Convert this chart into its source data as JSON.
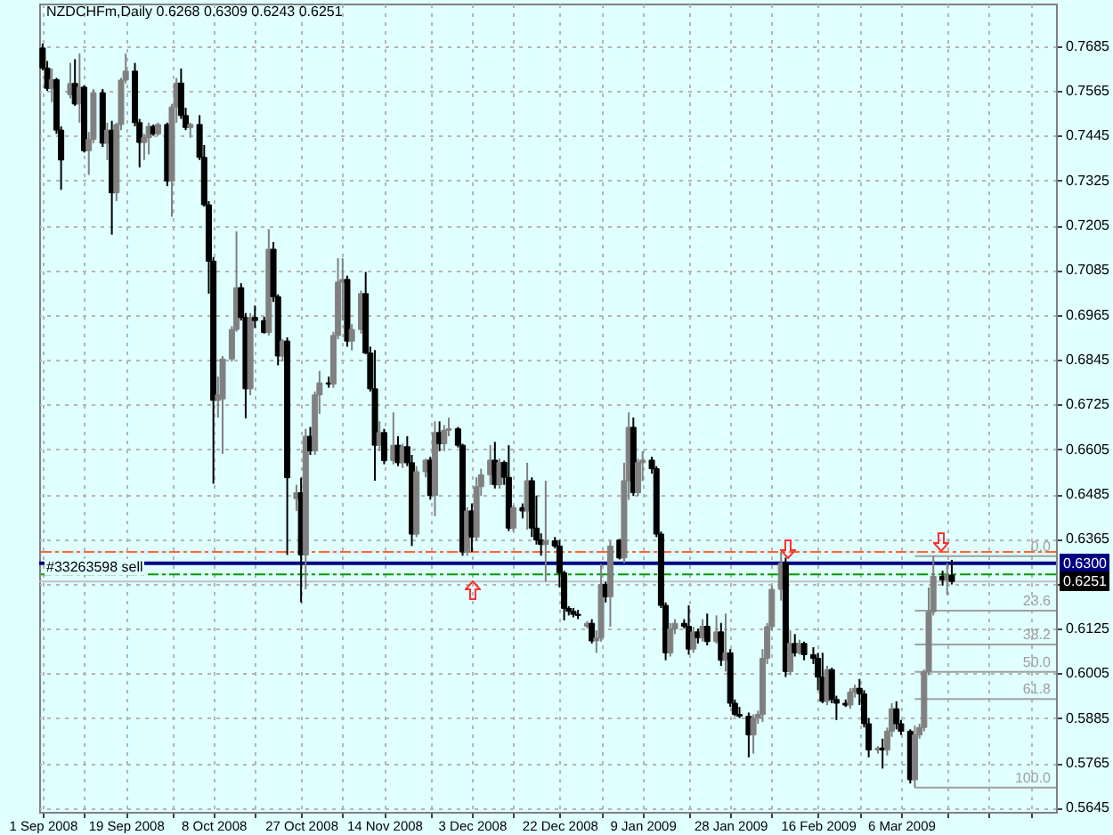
{
  "chart_data": {
    "type": "candlestick",
    "title": "NZDCHFm,Daily 0.6268 0.6309 0.6243 0.6251",
    "x": [
      "2008-09-01",
      "2008-09-02",
      "2008-09-03",
      "2008-09-04",
      "2008-09-05",
      "2008-09-07",
      "2008-09-08",
      "2008-09-09",
      "2008-09-10",
      "2008-09-11",
      "2008-09-12",
      "2008-09-14",
      "2008-09-15",
      "2008-09-16",
      "2008-09-17",
      "2008-09-18",
      "2008-09-19",
      "2008-09-21",
      "2008-09-22",
      "2008-09-23",
      "2008-09-24",
      "2008-09-25",
      "2008-09-26",
      "2008-09-28",
      "2008-09-29",
      "2008-09-30",
      "2008-10-01",
      "2008-10-02",
      "2008-10-03",
      "2008-10-05",
      "2008-10-06",
      "2008-10-07",
      "2008-10-08",
      "2008-10-09",
      "2008-10-10",
      "2008-10-12",
      "2008-10-13",
      "2008-10-14",
      "2008-10-15",
      "2008-10-16",
      "2008-10-17",
      "2008-10-19",
      "2008-10-20",
      "2008-10-21",
      "2008-10-22",
      "2008-10-23",
      "2008-10-24",
      "2008-10-26",
      "2008-10-27",
      "2008-10-28",
      "2008-10-29",
      "2008-10-30",
      "2008-10-31",
      "2008-11-02",
      "2008-11-03",
      "2008-11-04",
      "2008-11-05",
      "2008-11-06",
      "2008-11-07",
      "2008-11-09",
      "2008-11-10",
      "2008-11-11",
      "2008-11-12",
      "2008-11-13",
      "2008-11-14",
      "2008-11-16",
      "2008-11-17",
      "2008-11-18",
      "2008-11-19",
      "2008-11-20",
      "2008-11-21",
      "2008-11-23",
      "2008-11-24",
      "2008-11-25",
      "2008-11-26",
      "2008-11-27",
      "2008-11-28",
      "2008-11-30",
      "2008-12-01",
      "2008-12-02",
      "2008-12-03",
      "2008-12-04",
      "2008-12-05",
      "2008-12-07",
      "2008-12-08",
      "2008-12-09",
      "2008-12-10",
      "2008-12-11",
      "2008-12-12",
      "2008-12-14",
      "2008-12-15",
      "2008-12-16",
      "2008-12-17",
      "2008-12-18",
      "2008-12-19",
      "2008-12-21",
      "2008-12-22",
      "2008-12-23",
      "2008-12-24",
      "2008-12-25",
      "2008-12-26",
      "2008-12-28",
      "2008-12-29",
      "2008-12-30",
      "2008-12-31",
      "2009-01-01",
      "2009-01-02",
      "2009-01-04",
      "2009-01-05",
      "2009-01-06",
      "2009-01-07",
      "2009-01-08",
      "2009-01-09",
      "2009-01-11",
      "2009-01-12",
      "2009-01-13",
      "2009-01-14",
      "2009-01-15",
      "2009-01-16",
      "2009-01-18",
      "2009-01-19",
      "2009-01-20",
      "2009-01-21",
      "2009-01-22",
      "2009-01-23",
      "2009-01-25",
      "2009-01-26",
      "2009-01-27",
      "2009-01-28",
      "2009-01-29",
      "2009-01-30",
      "2009-02-01",
      "2009-02-02",
      "2009-02-03",
      "2009-02-04",
      "2009-02-05",
      "2009-02-06",
      "2009-02-08",
      "2009-02-09",
      "2009-02-10",
      "2009-02-11",
      "2009-02-12",
      "2009-02-13",
      "2009-02-15",
      "2009-02-16",
      "2009-02-17",
      "2009-02-18",
      "2009-02-19",
      "2009-02-20",
      "2009-02-22",
      "2009-02-23",
      "2009-02-24",
      "2009-02-25",
      "2009-02-26",
      "2009-02-27",
      "2009-03-01",
      "2009-03-02",
      "2009-03-03",
      "2009-03-04",
      "2009-03-05",
      "2009-03-06",
      "2009-03-08",
      "2009-03-09",
      "2009-03-10",
      "2009-03-11",
      "2009-03-12",
      "2009-03-13",
      "2009-03-15",
      "2009-03-16",
      "2009-03-17"
    ],
    "ohlc": [
      [
        0.768,
        0.7692,
        0.762,
        0.7626
      ],
      [
        0.7626,
        0.7645,
        0.7565,
        0.7572
      ],
      [
        0.7572,
        0.7625,
        0.7535,
        0.7595
      ],
      [
        0.7595,
        0.76,
        0.745,
        0.746
      ],
      [
        0.746,
        0.747,
        0.73,
        0.738
      ],
      [
        0.7555,
        0.764,
        0.7545,
        0.7585
      ],
      [
        0.7585,
        0.765,
        0.7525,
        0.753
      ],
      [
        0.753,
        0.7665,
        0.748,
        0.7575
      ],
      [
        0.7575,
        0.758,
        0.74,
        0.7405
      ],
      [
        0.7405,
        0.7455,
        0.734,
        0.7435
      ],
      [
        0.7435,
        0.757,
        0.7425,
        0.756
      ],
      [
        0.756,
        0.757,
        0.7415,
        0.7425
      ],
      [
        0.7425,
        0.748,
        0.738,
        0.746
      ],
      [
        0.746,
        0.7485,
        0.718,
        0.7292
      ],
      [
        0.7292,
        0.748,
        0.727,
        0.7475
      ],
      [
        0.7475,
        0.76,
        0.746,
        0.7594
      ],
      [
        0.7594,
        0.7665,
        0.7585,
        0.7618
      ],
      [
        0.7618,
        0.764,
        0.747,
        0.748
      ],
      [
        0.748,
        0.749,
        0.736,
        0.7427
      ],
      [
        0.7427,
        0.745,
        0.738,
        0.744
      ],
      [
        0.744,
        0.748,
        0.7395,
        0.747
      ],
      [
        0.747,
        0.7475,
        0.7445,
        0.745
      ],
      [
        0.745,
        0.748,
        0.7445,
        0.7475
      ],
      [
        0.7475,
        0.748,
        0.731,
        0.7324
      ],
      [
        0.7324,
        0.753,
        0.7228,
        0.7522
      ],
      [
        0.7522,
        0.76,
        0.748,
        0.7586
      ],
      [
        0.7586,
        0.7625,
        0.749,
        0.7499
      ],
      [
        0.7499,
        0.752,
        0.746,
        0.7467
      ],
      [
        0.7467,
        0.748,
        0.744,
        0.7475
      ],
      [
        0.7475,
        0.75,
        0.738,
        0.7387
      ],
      [
        0.7387,
        0.742,
        0.7255,
        0.726
      ],
      [
        0.726,
        0.727,
        0.7022,
        0.7109
      ],
      [
        0.7109,
        0.712,
        0.6513,
        0.6736
      ],
      [
        0.6736,
        0.68,
        0.669,
        0.6751
      ],
      [
        0.674,
        0.6855,
        0.6593,
        0.6847
      ],
      [
        0.6847,
        0.6935,
        0.684,
        0.6926
      ],
      [
        0.6926,
        0.7189,
        0.692,
        0.7038
      ],
      [
        0.7038,
        0.705,
        0.695,
        0.6958
      ],
      [
        0.6958,
        0.697,
        0.6688,
        0.6767
      ],
      [
        0.6767,
        0.697,
        0.675,
        0.6958
      ],
      [
        0.6958,
        0.699,
        0.693,
        0.695
      ],
      [
        0.695,
        0.696,
        0.6915,
        0.6918
      ],
      [
        0.6918,
        0.7195,
        0.691,
        0.7141
      ],
      [
        0.7141,
        0.716,
        0.7,
        0.7014
      ],
      [
        0.7014,
        0.702,
        0.683,
        0.6855
      ],
      [
        0.6855,
        0.69,
        0.684,
        0.6895
      ],
      [
        0.6895,
        0.6905,
        0.6322,
        0.6529
      ],
      [
        0.6473,
        0.651,
        0.644,
        0.6489
      ],
      [
        0.6489,
        0.6529,
        0.6195,
        0.6322
      ],
      [
        0.6322,
        0.666,
        0.623,
        0.664
      ],
      [
        0.664,
        0.6665,
        0.659,
        0.6601
      ],
      [
        0.6601,
        0.676,
        0.659,
        0.6751
      ],
      [
        0.6751,
        0.6815,
        0.67,
        0.6783
      ],
      [
        0.6783,
        0.68,
        0.677,
        0.678
      ],
      [
        0.678,
        0.692,
        0.677,
        0.691
      ],
      [
        0.691,
        0.7117,
        0.69,
        0.7053
      ],
      [
        0.7053,
        0.7117,
        0.695,
        0.706
      ],
      [
        0.706,
        0.707,
        0.688,
        0.6895
      ],
      [
        0.6895,
        0.694,
        0.687,
        0.6926
      ],
      [
        0.6926,
        0.703,
        0.6915,
        0.7022
      ],
      [
        0.7022,
        0.708,
        0.686,
        0.6863
      ],
      [
        0.6863,
        0.688,
        0.676,
        0.6767
      ],
      [
        0.6767,
        0.6871,
        0.6521,
        0.6616
      ],
      [
        0.6616,
        0.668,
        0.66,
        0.665
      ],
      [
        0.665,
        0.666,
        0.6565,
        0.6575
      ],
      [
        0.6575,
        0.6704,
        0.6565,
        0.6616
      ],
      [
        0.6616,
        0.664,
        0.656,
        0.6569
      ],
      [
        0.6569,
        0.662,
        0.6555,
        0.6612
      ],
      [
        0.6612,
        0.664,
        0.656,
        0.6569
      ],
      [
        0.6569,
        0.659,
        0.6346,
        0.6378
      ],
      [
        0.6378,
        0.656,
        0.637,
        0.6545
      ],
      [
        0.6545,
        0.658,
        0.653,
        0.6576
      ],
      [
        0.6576,
        0.6585,
        0.647,
        0.6481
      ],
      [
        0.6481,
        0.668,
        0.6426,
        0.665
      ],
      [
        0.665,
        0.668,
        0.66,
        0.662
      ],
      [
        0.662,
        0.667,
        0.66,
        0.6656
      ],
      [
        0.6656,
        0.669,
        0.664,
        0.666
      ],
      [
        0.666,
        0.6665,
        0.661,
        0.6616
      ],
      [
        0.6616,
        0.662,
        0.632,
        0.633
      ],
      [
        0.633,
        0.645,
        0.632,
        0.644
      ],
      [
        0.644,
        0.646,
        0.633,
        0.637
      ],
      [
        0.637,
        0.653,
        0.636,
        0.6505
      ],
      [
        0.6505,
        0.6553,
        0.648,
        0.6537
      ],
      [
        0.6537,
        0.6616,
        0.651,
        0.6576
      ],
      [
        0.6576,
        0.6625,
        0.65,
        0.651
      ],
      [
        0.651,
        0.658,
        0.65,
        0.657
      ],
      [
        0.657,
        0.6575,
        0.651,
        0.653
      ],
      [
        0.653,
        0.6616,
        0.6386,
        0.6394
      ],
      [
        0.6394,
        0.6455,
        0.6385,
        0.6449
      ],
      [
        0.6449,
        0.646,
        0.642,
        0.644
      ],
      [
        0.644,
        0.6569,
        0.639,
        0.6521
      ],
      [
        0.6521,
        0.653,
        0.637,
        0.6394
      ],
      [
        0.6394,
        0.6481,
        0.635,
        0.6362
      ],
      [
        0.6362,
        0.638,
        0.632,
        0.635
      ],
      [
        0.635,
        0.6521,
        0.6251,
        0.636
      ],
      [
        0.636,
        0.637,
        0.634,
        0.6346
      ],
      [
        0.6346,
        0.6362,
        0.6235,
        0.6274
      ],
      [
        0.6274,
        0.628,
        0.6147,
        0.6179
      ],
      [
        0.6179,
        0.6185,
        0.616,
        0.6171
      ],
      [
        0.6171,
        0.618,
        0.6155,
        0.6163
      ],
      [
        0.6163,
        0.6175,
        0.615,
        0.616
      ],
      [
        0.6131,
        0.6145,
        0.6125,
        0.6139
      ],
      [
        0.6139,
        0.615,
        0.6085,
        0.6092
      ],
      [
        0.6092,
        0.612,
        0.606,
        0.61
      ],
      [
        0.61,
        0.6298,
        0.609,
        0.6243
      ],
      [
        0.6243,
        0.625,
        0.6195,
        0.621
      ],
      [
        0.621,
        0.636,
        0.613,
        0.6346
      ],
      [
        0.6362,
        0.6365,
        0.631,
        0.6314
      ],
      [
        0.6314,
        0.6569,
        0.63,
        0.6521
      ],
      [
        0.6521,
        0.6704,
        0.647,
        0.6664
      ],
      [
        0.6664,
        0.669,
        0.648,
        0.6489
      ],
      [
        0.6489,
        0.658,
        0.648,
        0.6569
      ],
      [
        0.6569,
        0.66,
        0.652,
        0.6576
      ],
      [
        0.6576,
        0.6585,
        0.654,
        0.6553
      ],
      [
        0.6553,
        0.656,
        0.637,
        0.6378
      ],
      [
        0.6378,
        0.6385,
        0.618,
        0.6187
      ],
      [
        0.6187,
        0.6195,
        0.604,
        0.606
      ],
      [
        0.606,
        0.614,
        0.605,
        0.6124
      ],
      [
        0.6124,
        0.615,
        0.611,
        0.6139
      ],
      [
        0.6139,
        0.615,
        0.6125,
        0.6131
      ],
      [
        0.6131,
        0.6187,
        0.6055,
        0.607
      ],
      [
        0.607,
        0.613,
        0.606,
        0.6116
      ],
      [
        0.6116,
        0.6125,
        0.6085,
        0.61
      ],
      [
        0.61,
        0.615,
        0.609,
        0.6131
      ],
      [
        0.6131,
        0.6165,
        0.608,
        0.609
      ],
      [
        0.609,
        0.616,
        0.6085,
        0.6116
      ],
      [
        0.6116,
        0.614,
        0.6025,
        0.604
      ],
      [
        0.604,
        0.6165,
        0.601,
        0.606
      ],
      [
        0.606,
        0.607,
        0.5915,
        0.5925
      ],
      [
        0.5925,
        0.5935,
        0.589,
        0.5895
      ],
      [
        0.5895,
        0.5915,
        0.5885,
        0.589
      ],
      [
        0.589,
        0.59,
        0.578,
        0.584
      ],
      [
        0.584,
        0.5895,
        0.579,
        0.5885
      ],
      [
        0.5885,
        0.5905,
        0.587,
        0.5895
      ],
      [
        0.5895,
        0.607,
        0.5875,
        0.6045
      ],
      [
        0.6045,
        0.614,
        0.603,
        0.613
      ],
      [
        0.613,
        0.624,
        0.612,
        0.623
      ],
      [
        0.623,
        0.633,
        0.62,
        0.63
      ],
      [
        0.63,
        0.6315,
        0.5995,
        0.601
      ],
      [
        0.601,
        0.612,
        0.6,
        0.6085
      ],
      [
        0.6085,
        0.611,
        0.605,
        0.606
      ],
      [
        0.606,
        0.6095,
        0.6055,
        0.6085
      ],
      [
        0.6085,
        0.609,
        0.604,
        0.6055
      ],
      [
        0.6055,
        0.6075,
        0.603,
        0.6045
      ],
      [
        0.6045,
        0.606,
        0.596,
        0.5995
      ],
      [
        0.5995,
        0.606,
        0.5925,
        0.593
      ],
      [
        0.593,
        0.6025,
        0.592,
        0.6015
      ],
      [
        0.6015,
        0.602,
        0.5925,
        0.5935
      ],
      [
        0.5935,
        0.5945,
        0.588,
        0.5925
      ],
      [
        0.5925,
        0.5935,
        0.5915,
        0.592
      ],
      [
        0.592,
        0.5965,
        0.591,
        0.5955
      ],
      [
        0.5955,
        0.5975,
        0.594,
        0.5965
      ],
      [
        0.5965,
        0.599,
        0.592,
        0.595
      ],
      [
        0.595,
        0.596,
        0.586,
        0.587
      ],
      [
        0.587,
        0.5885,
        0.578,
        0.58
      ],
      [
        0.58,
        0.581,
        0.579,
        0.5805
      ],
      [
        0.5805,
        0.583,
        0.575,
        0.58
      ],
      [
        0.58,
        0.586,
        0.5785,
        0.585
      ],
      [
        0.585,
        0.5925,
        0.5835,
        0.591
      ],
      [
        0.591,
        0.593,
        0.5855,
        0.587
      ],
      [
        0.587,
        0.588,
        0.584,
        0.585
      ],
      [
        0.585,
        0.5855,
        0.571,
        0.572
      ],
      [
        0.572,
        0.5865,
        0.5699,
        0.584
      ],
      [
        0.584,
        0.587,
        0.583,
        0.586
      ],
      [
        0.586,
        0.6015,
        0.585,
        0.601
      ],
      [
        0.601,
        0.6235,
        0.6,
        0.617
      ],
      [
        0.617,
        0.6319,
        0.616,
        0.6265
      ],
      [
        0.6265,
        0.628,
        0.624,
        0.6255
      ],
      [
        0.6255,
        0.63,
        0.6215,
        0.6268
      ],
      [
        0.6268,
        0.6309,
        0.6243,
        0.6251
      ]
    ],
    "colors": [
      "#000000",
      "#000000",
      "#808080",
      "#000000",
      "#000000",
      "#808080",
      "#000000",
      "#808080",
      "#000000",
      "#808080",
      "#808080",
      "#000000",
      "#808080",
      "#000000",
      "#808080",
      "#808080",
      "#808080",
      "#000000",
      "#000000",
      "#808080",
      "#808080",
      "#000000",
      "#808080",
      "#000000",
      "#808080",
      "#808080",
      "#000000",
      "#000000",
      "#808080",
      "#000000",
      "#000000",
      "#000000",
      "#000000",
      "#808080",
      "#808080",
      "#808080",
      "#808080",
      "#000000",
      "#000000",
      "#808080",
      "#000000",
      "#000000",
      "#808080",
      "#000000",
      "#000000",
      "#808080",
      "#000000",
      "#808080",
      "#000000",
      "#808080",
      "#000000",
      "#808080",
      "#808080",
      "#000000",
      "#808080",
      "#808080",
      "#808080",
      "#000000",
      "#808080",
      "#808080",
      "#000000",
      "#000000",
      "#000000",
      "#808080",
      "#000000",
      "#808080",
      "#000000",
      "#808080",
      "#000000",
      "#000000",
      "#808080",
      "#808080",
      "#000000",
      "#808080",
      "#000000",
      "#808080",
      "#808080",
      "#000000",
      "#000000",
      "#808080",
      "#000000",
      "#808080",
      "#808080",
      "#808080",
      "#000000",
      "#808080",
      "#000000",
      "#000000",
      "#808080",
      "#000000",
      "#808080",
      "#000000",
      "#000000",
      "#000000",
      "#808080",
      "#000000",
      "#000000",
      "#000000",
      "#000000",
      "#000000",
      "#000000",
      "#808080",
      "#000000",
      "#808080",
      "#808080",
      "#000000",
      "#808080",
      "#000000",
      "#808080",
      "#808080",
      "#000000",
      "#808080",
      "#808080",
      "#000000",
      "#000000",
      "#000000",
      "#000000",
      "#808080",
      "#808080",
      "#000000",
      "#000000",
      "#808080",
      "#000000",
      "#808080",
      "#000000",
      "#808080",
      "#000000",
      "#808080",
      "#000000",
      "#000000",
      "#000000",
      "#000000",
      "#808080",
      "#808080",
      "#808080",
      "#808080",
      "#808080",
      "#808080",
      "#000000",
      "#808080",
      "#000000",
      "#808080",
      "#000000",
      "#000000",
      "#000000",
      "#000000",
      "#808080",
      "#000000",
      "#000000",
      "#000000",
      "#808080",
      "#808080",
      "#000000",
      "#000000",
      "#000000",
      "#808080",
      "#000000",
      "#808080",
      "#808080",
      "#000000",
      "#000000",
      "#000000",
      "#808080",
      "#808080",
      "#808080",
      "#808080",
      "#808080",
      "#000000",
      "#808080",
      "#000000"
    ],
    "series": [
      {
        "type": "line",
        "name": "0.0",
        "x": [
          "2009-03-09",
          "2009-04-08T14:00"
        ],
        "values": [
          0.6319,
          0.6319
        ],
        "color": "#a0a0a0"
      },
      {
        "type": "line",
        "name": "23.6",
        "x": [
          "2009-03-09",
          "2009-04-08T14:00"
        ],
        "values": [
          0.6173,
          0.6173
        ],
        "color": "#a0a0a0"
      },
      {
        "type": "line",
        "name": "38.2",
        "x": [
          "2009-03-09",
          "2009-04-08T14:00"
        ],
        "values": [
          0.6082,
          0.6082
        ],
        "color": "#a0a0a0"
      },
      {
        "type": "line",
        "name": "50.0",
        "x": [
          "2009-03-09",
          "2009-04-08T14:00"
        ],
        "values": [
          0.6009,
          0.6009
        ],
        "color": "#a0a0a0"
      },
      {
        "type": "line",
        "name": "61.8",
        "x": [
          "2009-03-09",
          "2009-04-08T14:00"
        ],
        "values": [
          0.5936,
          0.5936
        ],
        "color": "#a0a0a0"
      },
      {
        "type": "line",
        "name": "100.0",
        "x": [
          "2009-03-09",
          "2009-04-08T14:00"
        ],
        "values": [
          0.5699,
          0.5699
        ],
        "color": "#a0a0a0"
      }
    ],
    "xlim": [
      "2008-08-31T06:00",
      "2009-04-08T14:00"
    ],
    "xticks": [
      {
        "value": "2008-09-01",
        "label": "1 Sep 2008"
      },
      {
        "value": "2008-09-10",
        "label": null
      },
      {
        "value": "2008-09-19",
        "label": "19 Sep 2008"
      },
      {
        "value": "2008-09-29",
        "label": null
      },
      {
        "value": "2008-10-08",
        "label": "8 Oct 2008"
      },
      {
        "value": "2008-10-17",
        "label": null
      },
      {
        "value": "2008-10-27",
        "label": "27 Oct 2008"
      },
      {
        "value": "2008-11-05",
        "label": null
      },
      {
        "value": "2008-11-14",
        "label": "14 Nov 2008"
      },
      {
        "value": "2008-11-24",
        "label": null
      },
      {
        "value": "2008-12-03",
        "label": "3 Dec 2008"
      },
      {
        "value": "2008-12-12",
        "label": null
      },
      {
        "value": "2008-12-22",
        "label": "22 Dec 2008"
      },
      {
        "value": "2008-12-31",
        "label": null
      },
      {
        "value": "2009-01-09",
        "label": "9 Jan 2009"
      },
      {
        "value": "2009-01-19",
        "label": null
      },
      {
        "value": "2009-01-28",
        "label": "28 Jan 2009"
      },
      {
        "value": "2009-02-06",
        "label": null
      },
      {
        "value": "2009-02-16",
        "label": "16 Feb 2009"
      },
      {
        "value": "2009-02-25",
        "label": null
      },
      {
        "value": "2009-03-06",
        "label": "6 Mar 2009"
      },
      {
        "value": "2009-03-16",
        "label": null
      },
      {
        "value": "2009-03-25",
        "label": null
      },
      {
        "value": "2009-04-03",
        "label": null
      }
    ],
    "ylim": [
      0.5634,
      0.7799
    ],
    "yticks": [
      0.5645,
      0.5765,
      0.5885,
      0.6005,
      0.6125,
      {
        "value": 0.6245,
        "label": null
      },
      0.6365,
      0.6485,
      0.6605,
      0.6725,
      0.6845,
      0.6965,
      0.7085,
      0.7205,
      0.7325,
      0.7445,
      0.7565,
      0.7685
    ],
    "grid": true,
    "ref_lines": [
      {
        "axis": "y",
        "value": 0.633,
        "color": "#ff6633",
        "line_style": "dashed"
      },
      {
        "axis": "y",
        "value": 0.63,
        "label": "#33263598 sell",
        "color": "#000080"
      },
      {
        "axis": "y",
        "value": 0.627,
        "color": "#009900",
        "line_style": "dashed"
      },
      {
        "axis": "y",
        "value": 0.6251,
        "color": "#c0c0c0"
      }
    ],
    "annotations": [
      {
        "text": "0.6300",
        "x": "2009-04-08T14:00",
        "y": 0.63
      },
      {
        "text": "0.6251",
        "x": "2009-04-08T14:00",
        "y": 0.6251
      }
    ]
  }
}
